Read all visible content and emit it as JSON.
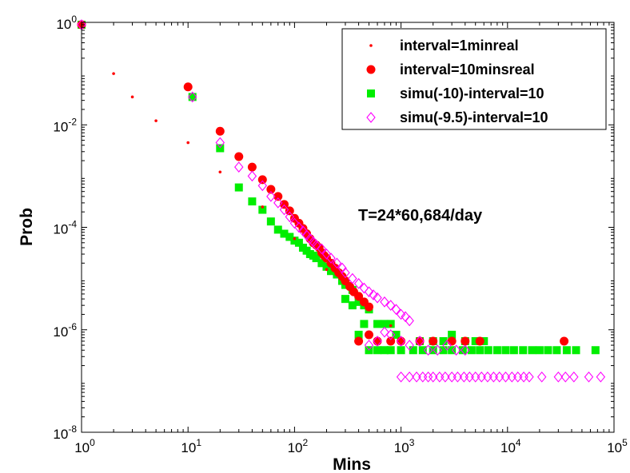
{
  "chart_data": {
    "type": "scatter",
    "xlabel": "Mins",
    "ylabel": "Prob",
    "xscale": "log",
    "yscale": "log",
    "xlim": [
      1,
      100000
    ],
    "ylim": [
      1e-08,
      1
    ],
    "x_ticks": [
      {
        "base": "10",
        "exp": "0"
      },
      {
        "base": "10",
        "exp": "1"
      },
      {
        "base": "10",
        "exp": "2"
      },
      {
        "base": "10",
        "exp": "3"
      },
      {
        "base": "10",
        "exp": "4"
      },
      {
        "base": "10",
        "exp": "5"
      }
    ],
    "y_ticks": [
      {
        "base": "10",
        "exp": "0"
      },
      {
        "base": "10",
        "exp": "-2"
      },
      {
        "base": "10",
        "exp": "-4"
      },
      {
        "base": "10",
        "exp": "-6"
      },
      {
        "base": "10",
        "exp": "-8"
      }
    ],
    "grid": false,
    "legend_position": "top-right",
    "annotation": "T=24*60,684/day",
    "series": [
      {
        "name": "interval=1minreal",
        "marker": "dot",
        "color": "#ff0000",
        "points": [
          [
            1,
            0.9
          ],
          [
            2,
            0.1
          ],
          [
            3,
            0.035
          ],
          [
            5,
            0.012
          ],
          [
            10,
            0.0045
          ],
          [
            20,
            0.0012
          ],
          [
            50,
            0.00025
          ],
          [
            100,
            6e-05
          ],
          [
            200,
            1.5e-05
          ],
          [
            400,
            4e-06
          ],
          [
            800,
            1.2e-06
          ],
          [
            1500,
            6e-07
          ]
        ]
      },
      {
        "name": "interval=10minsreal",
        "marker": "circle",
        "color": "#ff0000",
        "points": [
          [
            1,
            0.9
          ],
          [
            10,
            0.055
          ],
          [
            20,
            0.0075
          ],
          [
            30,
            0.0024
          ],
          [
            40,
            0.0015
          ],
          [
            50,
            0.00085
          ],
          [
            60,
            0.00055
          ],
          [
            70,
            0.0004
          ],
          [
            80,
            0.00028
          ],
          [
            90,
            0.00021
          ],
          [
            100,
            0.00015
          ],
          [
            110,
            0.00012
          ],
          [
            120,
            9.5e-05
          ],
          [
            130,
            7.5e-05
          ],
          [
            140,
            6e-05
          ],
          [
            150,
            5e-05
          ],
          [
            160,
            4.5e-05
          ],
          [
            170,
            4e-05
          ],
          [
            180,
            3.2e-05
          ],
          [
            190,
            2.8e-05
          ],
          [
            200,
            2.5e-05
          ],
          [
            220,
            2e-05
          ],
          [
            240,
            1.6e-05
          ],
          [
            260,
            1.3e-05
          ],
          [
            280,
            1.1e-05
          ],
          [
            300,
            9e-06
          ],
          [
            330,
            7e-06
          ],
          [
            360,
            5.5e-06
          ],
          [
            400,
            4.5e-06
          ],
          [
            450,
            3.5e-06
          ],
          [
            500,
            2.8e-06
          ],
          [
            400,
            6e-07
          ],
          [
            500,
            8e-07
          ],
          [
            600,
            6e-07
          ],
          [
            800,
            6e-07
          ],
          [
            1000,
            6e-07
          ],
          [
            1500,
            6e-07
          ],
          [
            2000,
            6e-07
          ],
          [
            3000,
            6e-07
          ],
          [
            4000,
            6e-07
          ],
          [
            5500,
            6e-07
          ],
          [
            34000,
            6e-07
          ]
        ]
      },
      {
        "name": "simu(-10)-interval=10",
        "marker": "square",
        "color": "#00ee00",
        "points": [
          [
            1,
            0.9
          ],
          [
            11,
            0.035
          ],
          [
            20,
            0.0035
          ],
          [
            30,
            0.0006
          ],
          [
            40,
            0.00032
          ],
          [
            50,
            0.00022
          ],
          [
            60,
            0.00013
          ],
          [
            70,
            9e-05
          ],
          [
            80,
            7.5e-05
          ],
          [
            90,
            6.5e-05
          ],
          [
            100,
            5.5e-05
          ],
          [
            110,
            5e-05
          ],
          [
            120,
            4e-05
          ],
          [
            130,
            3.5e-05
          ],
          [
            140,
            3e-05
          ],
          [
            150,
            2.8e-05
          ],
          [
            160,
            2.5e-05
          ],
          [
            180,
            2e-05
          ],
          [
            200,
            1.7e-05
          ],
          [
            220,
            1.4e-05
          ],
          [
            250,
            1.2e-05
          ],
          [
            280,
            9e-06
          ],
          [
            300,
            7.5e-06
          ],
          [
            350,
            6e-06
          ],
          [
            300,
            4e-06
          ],
          [
            350,
            3e-06
          ],
          [
            400,
            3.5e-06
          ],
          [
            450,
            3e-06
          ],
          [
            500,
            2.5e-06
          ],
          [
            400,
            8e-07
          ],
          [
            450,
            1.3e-06
          ],
          [
            600,
            1.3e-06
          ],
          [
            700,
            1.3e-06
          ],
          [
            800,
            1.3e-06
          ],
          [
            900,
            8e-07
          ],
          [
            500,
            4e-07
          ],
          [
            600,
            4e-07
          ],
          [
            700,
            4e-07
          ],
          [
            800,
            4e-07
          ],
          [
            1000,
            4e-07
          ],
          [
            1300,
            4e-07
          ],
          [
            1600,
            4e-07
          ],
          [
            2000,
            4e-07
          ],
          [
            2500,
            4e-07
          ],
          [
            3000,
            4e-07
          ],
          [
            3800,
            4e-07
          ],
          [
            4600,
            4e-07
          ],
          [
            5500,
            4e-07
          ],
          [
            6600,
            4e-07
          ],
          [
            8000,
            4e-07
          ],
          [
            9600,
            4e-07
          ],
          [
            11500,
            4e-07
          ],
          [
            14000,
            4e-07
          ],
          [
            17000,
            4e-07
          ],
          [
            20000,
            4e-07
          ],
          [
            24000,
            4e-07
          ],
          [
            29000,
            4e-07
          ],
          [
            36000,
            4e-07
          ],
          [
            44000,
            4e-07
          ],
          [
            67000,
            4e-07
          ],
          [
            1500,
            6e-07
          ],
          [
            2000,
            6e-07
          ],
          [
            2500,
            6e-07
          ],
          [
            3000,
            8e-07
          ],
          [
            4000,
            6e-07
          ],
          [
            5000,
            6e-07
          ],
          [
            6000,
            6e-07
          ]
        ]
      },
      {
        "name": "simu(-9.5)-interval=10",
        "marker": "diamond",
        "color": "#ff00ff",
        "points": [
          [
            1,
            0.9
          ],
          [
            11,
            0.035
          ],
          [
            20,
            0.0045
          ],
          [
            30,
            0.0015
          ],
          [
            40,
            0.001
          ],
          [
            50,
            0.00065
          ],
          [
            60,
            0.0004
          ],
          [
            70,
            0.0003
          ],
          [
            80,
            0.00022
          ],
          [
            90,
            0.00016
          ],
          [
            100,
            0.00012
          ],
          [
            110,
            0.0001
          ],
          [
            120,
            8.5e-05
          ],
          [
            130,
            7e-05
          ],
          [
            140,
            6e-05
          ],
          [
            150,
            5.2e-05
          ],
          [
            160,
            4.5e-05
          ],
          [
            180,
            3.8e-05
          ],
          [
            200,
            3e-05
          ],
          [
            220,
            2.5e-05
          ],
          [
            250,
            2e-05
          ],
          [
            280,
            1.6e-05
          ],
          [
            300,
            1.3e-05
          ],
          [
            350,
            1e-05
          ],
          [
            400,
            8e-06
          ],
          [
            450,
            6.5e-06
          ],
          [
            500,
            5.5e-06
          ],
          [
            550,
            4.8e-06
          ],
          [
            600,
            4.2e-06
          ],
          [
            700,
            3.5e-06
          ],
          [
            800,
            3e-06
          ],
          [
            900,
            2.5e-06
          ],
          [
            1000,
            2e-06
          ],
          [
            1100,
            1.8e-06
          ],
          [
            1200,
            1.5e-06
          ],
          [
            500,
            5e-07
          ],
          [
            600,
            6e-07
          ],
          [
            700,
            9e-07
          ],
          [
            800,
            8e-07
          ],
          [
            1000,
            6e-07
          ],
          [
            1200,
            5e-07
          ],
          [
            1500,
            6e-07
          ],
          [
            1800,
            4e-07
          ],
          [
            2200,
            4e-07
          ],
          [
            2700,
            5e-07
          ],
          [
            3300,
            4e-07
          ],
          [
            4000,
            4e-07
          ],
          [
            1000,
            1.2e-07
          ],
          [
            1200,
            1.2e-07
          ],
          [
            1400,
            1.2e-07
          ],
          [
            1600,
            1.2e-07
          ],
          [
            1800,
            1.2e-07
          ],
          [
            2000,
            1.2e-07
          ],
          [
            2300,
            1.2e-07
          ],
          [
            2600,
            1.2e-07
          ],
          [
            3000,
            1.2e-07
          ],
          [
            3400,
            1.2e-07
          ],
          [
            3900,
            1.2e-07
          ],
          [
            4400,
            1.2e-07
          ],
          [
            5000,
            1.2e-07
          ],
          [
            5700,
            1.2e-07
          ],
          [
            6500,
            1.2e-07
          ],
          [
            7400,
            1.2e-07
          ],
          [
            8400,
            1.2e-07
          ],
          [
            9600,
            1.2e-07
          ],
          [
            11000,
            1.2e-07
          ],
          [
            12500,
            1.2e-07
          ],
          [
            14200,
            1.2e-07
          ],
          [
            16000,
            1.2e-07
          ],
          [
            21000,
            1.2e-07
          ],
          [
            30000,
            1.2e-07
          ],
          [
            35000,
            1.2e-07
          ],
          [
            42000,
            1.2e-07
          ],
          [
            58000,
            1.2e-07
          ],
          [
            75000,
            1.2e-07
          ]
        ]
      }
    ]
  }
}
